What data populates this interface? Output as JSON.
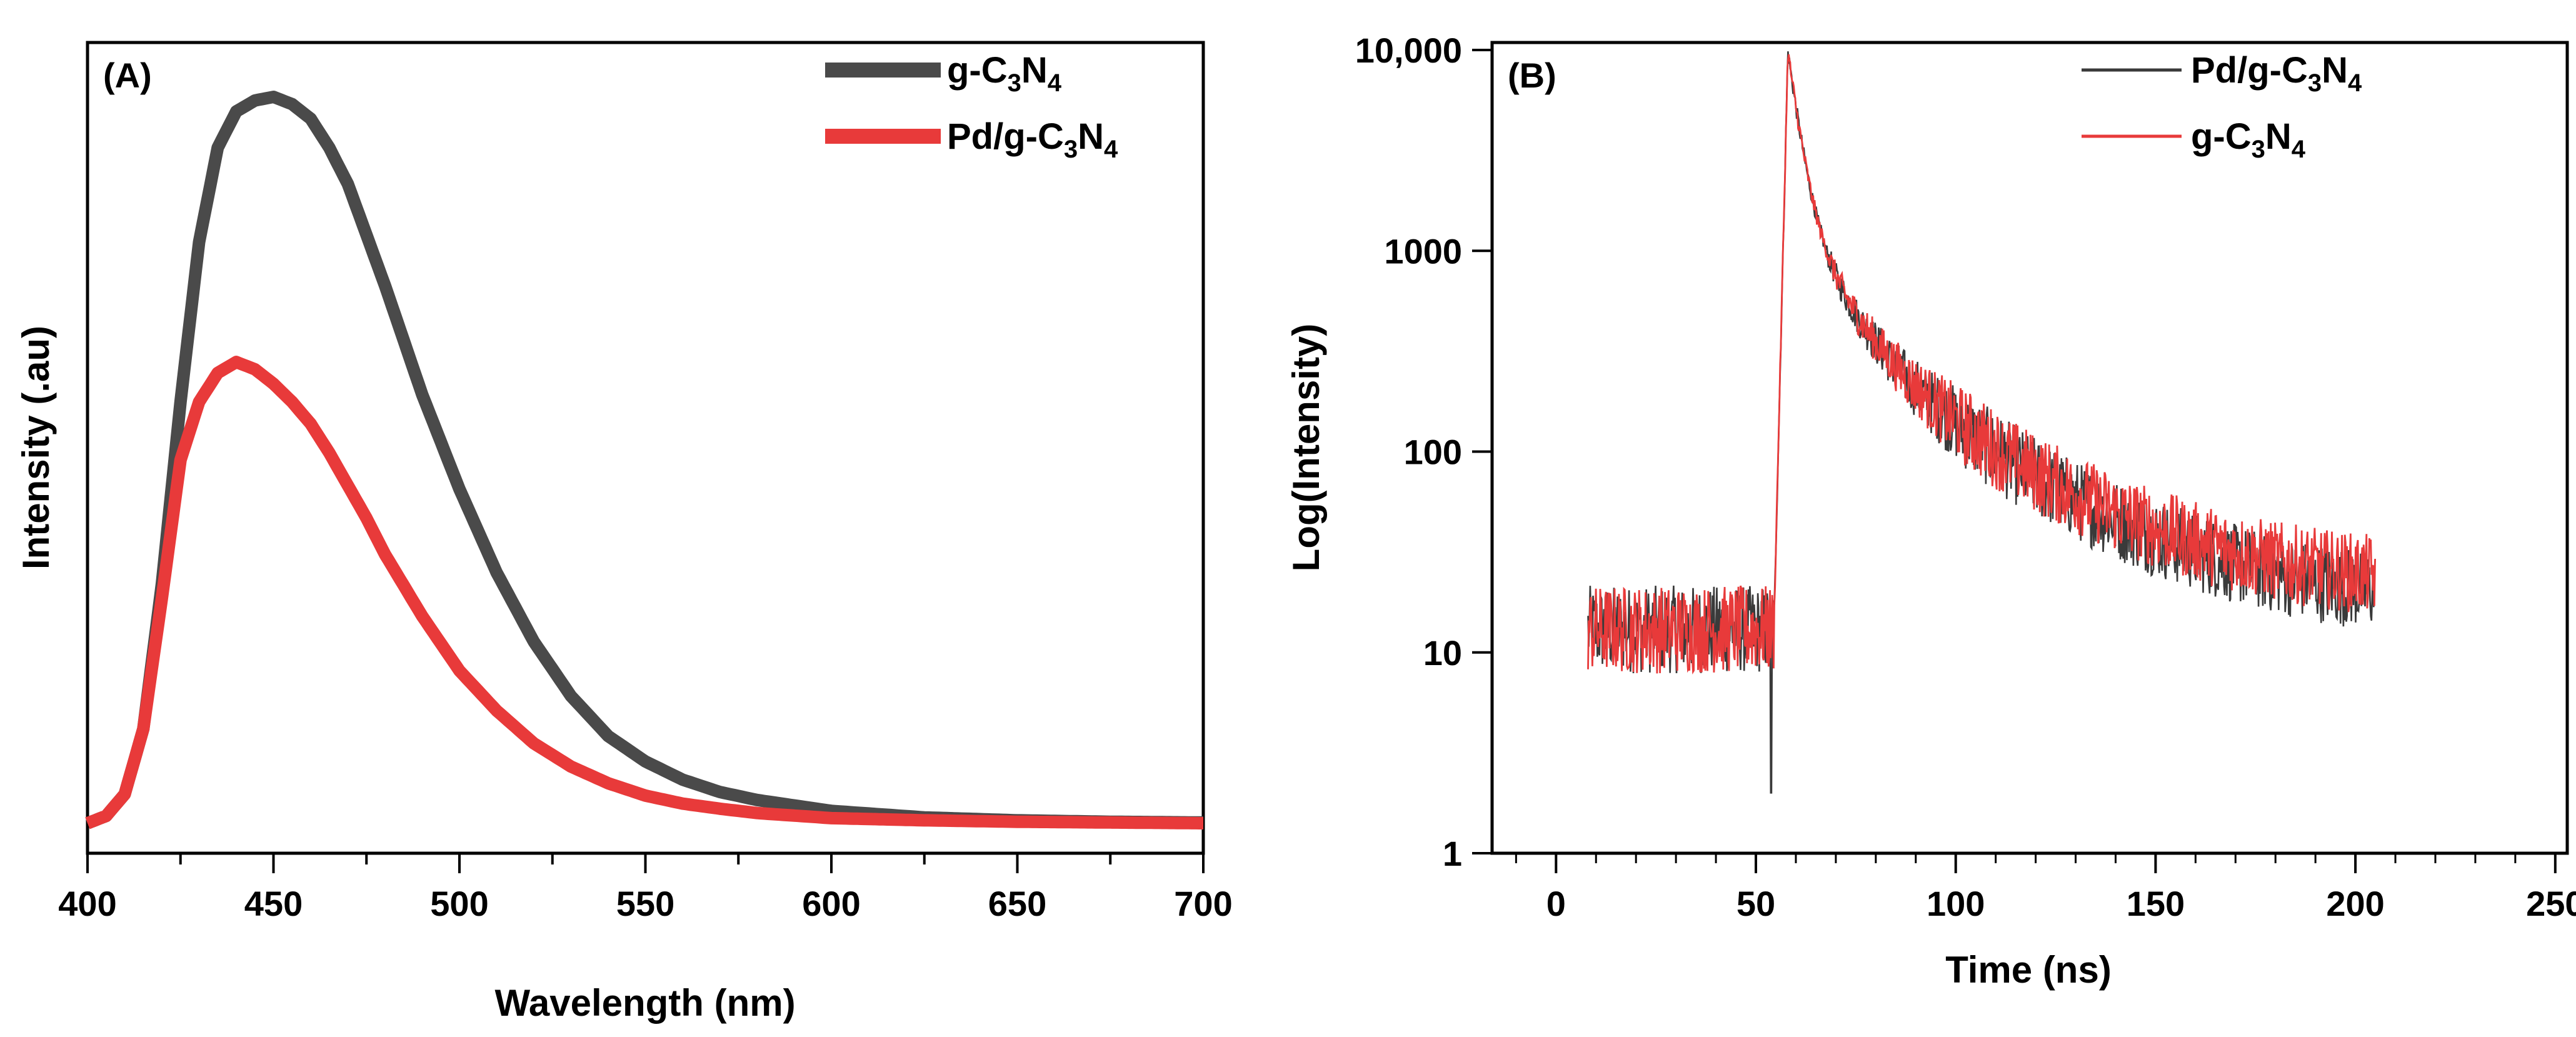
{
  "chart_data": [
    {
      "panel_label": "(A)",
      "type": "line",
      "title": "",
      "xlabel": "Wavelength (nm)",
      "ylabel": "Intensity (.au)",
      "xlim": [
        400,
        700
      ],
      "ylim": [
        0,
        1.0
      ],
      "xticks": [
        "400",
        "450",
        "500",
        "550",
        "600",
        "650",
        "700"
      ],
      "yticks": [],
      "grid": false,
      "legend_position": "top-right",
      "series": [
        {
          "name": "g-C3N4",
          "legend": {
            "pre": "g-C",
            "n1": "3",
            "mid": "N",
            "n2": "4"
          },
          "color": "#4a4a4a",
          "x": [
            400,
            405,
            410,
            415,
            420,
            425,
            430,
            435,
            440,
            445,
            450,
            455,
            460,
            465,
            470,
            475,
            480,
            490,
            500,
            510,
            520,
            530,
            540,
            550,
            560,
            570,
            580,
            600,
            625,
            650,
            675,
            700
          ],
          "y": [
            0.0,
            0.01,
            0.04,
            0.13,
            0.33,
            0.58,
            0.8,
            0.93,
            0.98,
            0.995,
            1.0,
            0.99,
            0.97,
            0.93,
            0.88,
            0.81,
            0.74,
            0.59,
            0.46,
            0.345,
            0.25,
            0.175,
            0.12,
            0.085,
            0.06,
            0.043,
            0.032,
            0.017,
            0.008,
            0.004,
            0.002,
            0.001
          ]
        },
        {
          "name": "Pd/g-C3N4",
          "legend": {
            "pre": "Pd/g-C",
            "n1": "3",
            "mid": "N",
            "n2": "4"
          },
          "color": "#e83a3a",
          "x": [
            400,
            405,
            410,
            415,
            420,
            425,
            430,
            435,
            440,
            445,
            450,
            455,
            460,
            465,
            470,
            475,
            480,
            490,
            500,
            510,
            520,
            530,
            540,
            550,
            560,
            570,
            580,
            600,
            625,
            650,
            675,
            700
          ],
          "y": [
            0.0,
            0.01,
            0.04,
            0.13,
            0.31,
            0.5,
            0.58,
            0.62,
            0.635,
            0.625,
            0.605,
            0.58,
            0.55,
            0.51,
            0.465,
            0.42,
            0.37,
            0.285,
            0.21,
            0.155,
            0.11,
            0.078,
            0.055,
            0.038,
            0.027,
            0.02,
            0.014,
            0.007,
            0.004,
            0.002,
            0.001,
            0.0
          ]
        }
      ]
    },
    {
      "panel_label": "(B)",
      "type": "line",
      "title": "",
      "xlabel": "Time (ns)",
      "ylabel": "Log(Intensity)",
      "xlim": [
        -16,
        253
      ],
      "ylim": [
        1,
        10000
      ],
      "yscale": "log",
      "xticks": [
        "0",
        "50",
        "100",
        "150",
        "200",
        "250"
      ],
      "yticks": [
        "1",
        "10",
        "100",
        "1000",
        "10,000"
      ],
      "grid": false,
      "legend_position": "top-right",
      "decay": {
        "t_start": 8,
        "t_rise": 54.5,
        "t_peak": 58,
        "t_end": 205,
        "baseline": 13,
        "peak": 9800,
        "components": [
          [
            0.82,
            2.6
          ],
          [
            0.14,
            9
          ],
          [
            0.045,
            30
          ]
        ]
      },
      "series": [
        {
          "name": "Pd/g-C3N4",
          "legend": {
            "pre": "Pd/g-C",
            "n1": "3",
            "mid": "N",
            "n2": "4"
          },
          "color": "#3a3a3a",
          "tail_level": 17,
          "dip_value": 2
        },
        {
          "name": "g-C3N4",
          "legend": {
            "pre": "g-C",
            "n1": "3",
            "mid": "N",
            "n2": "4"
          },
          "color": "#e83a3a",
          "tail_level": 21
        }
      ]
    }
  ]
}
